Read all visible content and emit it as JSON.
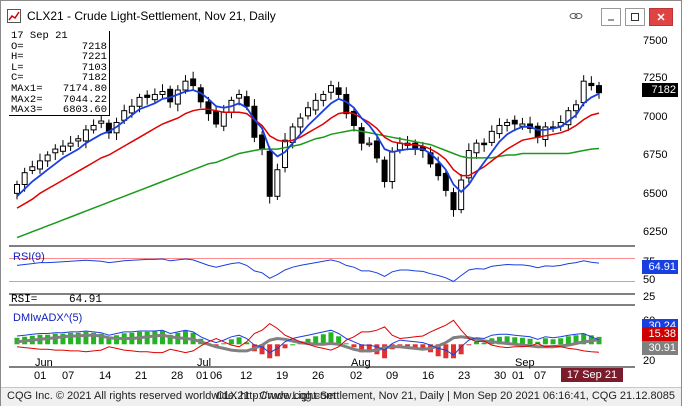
{
  "window": {
    "title": "CLX21 - Crude Light-Settlement, Nov 21, Daily",
    "icons": [
      "chart-app-icon",
      "link-icon",
      "minimize-icon",
      "maximize-icon",
      "close-icon"
    ]
  },
  "ohlc": {
    "date": "17 Sep 21",
    "rows": [
      {
        "k": "O=",
        "v": "7218"
      },
      {
        "k": "H=",
        "v": "7221"
      },
      {
        "k": "L=",
        "v": "7103"
      },
      {
        "k": "C=",
        "v": "7182"
      },
      {
        "k": "MAx1=",
        "v": "7174.80"
      },
      {
        "k": "MAx2=",
        "v": "7044.22"
      },
      {
        "k": "MAx3=",
        "v": "6803.60"
      }
    ]
  },
  "price_axis": {
    "ticks": [
      "7500",
      "7250",
      "7000",
      "6750",
      "6500",
      "6250"
    ],
    "last_price": "7182",
    "colors": {
      "last_price_bg": "#000000"
    }
  },
  "rsi": {
    "label": "RSI(9)",
    "readout_label": "RSI=",
    "readout_value": "64.91",
    "ticks": [
      "75",
      "50",
      "25"
    ],
    "tag": "64.91",
    "colors": {
      "tag_bg": "#1a3fe0",
      "line": "#1a3fe0"
    }
  },
  "dmi": {
    "label": "DMIwADX^(5)",
    "ticks": [
      "60",
      "40",
      "20"
    ],
    "tags": [
      {
        "value": "30.24",
        "color": "#1a3fe0"
      },
      {
        "value": "15.38",
        "color": "#d00000"
      },
      {
        "value": "30.91",
        "color": "#808080"
      }
    ]
  },
  "x_axis": {
    "months": [
      "Jun",
      "Jul",
      "Aug",
      "Sep"
    ],
    "days": [
      "01",
      "07",
      "14",
      "21",
      "28",
      "01",
      "06",
      "12",
      "19",
      "26",
      "02",
      "09",
      "16",
      "23",
      "30",
      "01",
      "07"
    ],
    "cursor_date": "17 Sep 21"
  },
  "status": {
    "left": "CQG Inc. © 2021 All rights reserved worldwide. http://www.cqg.com",
    "right": "CLX21 - Crude Light-Settlement, Nov 21, Daily | Mon Sep 20 2021 06:16:41, CQG 21.12.8085"
  },
  "chart_data": [
    {
      "type": "candlestick",
      "title": "CLX21 - Crude Light-Settlement, Nov 21, Daily",
      "ylim": [
        6150,
        7600
      ],
      "x": [
        "Jun 01",
        "Jun 02",
        "Jun 03",
        "Jun 04",
        "Jun 07",
        "Jun 08",
        "Jun 09",
        "Jun 10",
        "Jun 11",
        "Jun 14",
        "Jun 15",
        "Jun 16",
        "Jun 17",
        "Jun 18",
        "Jun 21",
        "Jun 22",
        "Jun 23",
        "Jun 24",
        "Jun 25",
        "Jun 28",
        "Jun 29",
        "Jun 30",
        "Jul 01",
        "Jul 02",
        "Jul 06",
        "Jul 07",
        "Jul 08",
        "Jul 09",
        "Jul 12",
        "Jul 13",
        "Jul 14",
        "Jul 15",
        "Jul 16",
        "Jul 19",
        "Jul 20",
        "Jul 21",
        "Jul 22",
        "Jul 23",
        "Jul 26",
        "Jul 27",
        "Jul 28",
        "Jul 29",
        "Jul 30",
        "Aug 02",
        "Aug 03",
        "Aug 04",
        "Aug 05",
        "Aug 06",
        "Aug 09",
        "Aug 10",
        "Aug 11",
        "Aug 12",
        "Aug 13",
        "Aug 16",
        "Aug 17",
        "Aug 18",
        "Aug 19",
        "Aug 20",
        "Aug 23",
        "Aug 24",
        "Aug 25",
        "Aug 26",
        "Aug 27",
        "Aug 30",
        "Aug 31",
        "Sep 01",
        "Sep 02",
        "Sep 03",
        "Sep 07",
        "Sep 08",
        "Sep 09",
        "Sep 10",
        "Sep 13",
        "Sep 14",
        "Sep 15",
        "Sep 16",
        "Sep 17"
      ],
      "close": [
        6560,
        6640,
        6680,
        6720,
        6760,
        6800,
        6820,
        6840,
        6870,
        6930,
        6960,
        6990,
        6910,
        6980,
        7060,
        7090,
        7150,
        7150,
        7170,
        7190,
        7120,
        7200,
        7260,
        7230,
        7120,
        7040,
        6970,
        7050,
        7130,
        7170,
        7090,
        6880,
        6800,
        6480,
        6660,
        6860,
        6950,
        7010,
        7080,
        7130,
        7170,
        7230,
        7170,
        7040,
        6960,
        6840,
        6840,
        6740,
        6580,
        6780,
        6840,
        6840,
        6800,
        6790,
        6700,
        6620,
        6520,
        6390,
        6590,
        6790,
        6840,
        6830,
        6920,
        6960,
        6980,
        6970,
        6970,
        6940,
        6880,
        6950,
        6940,
        6980,
        7060,
        7100,
        7260,
        7230,
        7182
      ],
      "ma_fast": [
        6480,
        6530,
        6580,
        6620,
        6660,
        6700,
        6740,
        6770,
        6800,
        6840,
        6870,
        6900,
        6920,
        6950,
        6990,
        7030,
        7070,
        7090,
        7110,
        7140,
        7150,
        7170,
        7190,
        7200,
        7180,
        7140,
        7090,
        7080,
        7090,
        7110,
        7080,
        7000,
        6940,
        6800,
        6750,
        6780,
        6840,
        6900,
        6960,
        7010,
        7060,
        7110,
        7140,
        7120,
        7080,
        7010,
        6960,
        6890,
        6800,
        6780,
        6790,
        6800,
        6800,
        6800,
        6770,
        6720,
        6660,
        6560,
        6510,
        6560,
        6640,
        6710,
        6780,
        6850,
        6900,
        6930,
        6950,
        6950,
        6930,
        6930,
        6940,
        6950,
        6990,
        7030,
        7110,
        7150,
        7175
      ],
      "ma_mid": [
        6400,
        6430,
        6460,
        6500,
        6530,
        6560,
        6590,
        6620,
        6650,
        6680,
        6710,
        6740,
        6760,
        6790,
        6820,
        6850,
        6880,
        6910,
        6940,
        6970,
        6990,
        7010,
        7040,
        7060,
        7070,
        7070,
        7060,
        7050,
        7050,
        7050,
        7040,
        7000,
        6960,
        6890,
        6860,
        6850,
        6860,
        6880,
        6910,
        6940,
        6970,
        7010,
        7040,
        7050,
        7040,
        7010,
        6980,
        6940,
        6880,
        6850,
        6840,
        6830,
        6830,
        6820,
        6800,
        6770,
        6730,
        6660,
        6620,
        6620,
        6650,
        6680,
        6720,
        6760,
        6800,
        6830,
        6860,
        6870,
        6880,
        6890,
        6900,
        6910,
        6930,
        6960,
        7000,
        7030,
        7044
      ],
      "ma_slow": [
        6200,
        6220,
        6240,
        6260,
        6280,
        6300,
        6320,
        6340,
        6360,
        6380,
        6400,
        6420,
        6440,
        6460,
        6480,
        6500,
        6520,
        6540,
        6560,
        6580,
        6600,
        6620,
        6640,
        6660,
        6680,
        6700,
        6710,
        6730,
        6750,
        6770,
        6780,
        6790,
        6800,
        6800,
        6800,
        6810,
        6820,
        6830,
        6850,
        6870,
        6880,
        6900,
        6910,
        6920,
        6930,
        6920,
        6910,
        6900,
        6890,
        6880,
        6870,
        6860,
        6850,
        6840,
        6830,
        6810,
        6790,
        6770,
        6750,
        6740,
        6740,
        6740,
        6740,
        6750,
        6760,
        6760,
        6770,
        6770,
        6770,
        6770,
        6770,
        6770,
        6770,
        6780,
        6790,
        6800,
        6804
      ]
    },
    {
      "type": "line",
      "title": "RSI(9)",
      "ylim": [
        0,
        100
      ],
      "series": [
        {
          "name": "RSI(9)",
          "values": [
            60,
            62,
            64,
            66,
            66,
            67,
            68,
            69,
            70,
            71,
            70,
            69,
            66,
            68,
            70,
            71,
            72,
            73,
            73,
            74,
            70,
            72,
            74,
            72,
            66,
            60,
            56,
            60,
            64,
            66,
            60,
            48,
            44,
            32,
            40,
            50,
            56,
            60,
            63,
            66,
            69,
            72,
            68,
            60,
            56,
            48,
            48,
            44,
            36,
            46,
            50,
            50,
            48,
            47,
            42,
            38,
            33,
            25,
            38,
            50,
            53,
            52,
            58,
            60,
            62,
            61,
            61,
            59,
            55,
            59,
            58,
            60,
            64,
            66,
            70,
            67,
            64.91
          ]
        }
      ]
    },
    {
      "type": "line",
      "title": "DMIwADX^(5)",
      "ylim": [
        0,
        70
      ],
      "series": [
        {
          "name": "+DI",
          "values": [
            35,
            36,
            37,
            38,
            38,
            39,
            39,
            40,
            40,
            41,
            40,
            39,
            36,
            38,
            40,
            40,
            41,
            41,
            41,
            42,
            38,
            40,
            42,
            40,
            34,
            30,
            27,
            30,
            34,
            36,
            32,
            24,
            22,
            15,
            20,
            28,
            32,
            34,
            36,
            38,
            40,
            42,
            38,
            32,
            28,
            24,
            24,
            22,
            18,
            26,
            30,
            29,
            28,
            27,
            24,
            20,
            18,
            12,
            22,
            30,
            33,
            32,
            36,
            37,
            37,
            36,
            35,
            34,
            31,
            34,
            33,
            34,
            36,
            37,
            38,
            34,
            30.24
          ]
        },
        {
          "name": "-DI",
          "values": [
            22,
            21,
            20,
            19,
            19,
            18,
            18,
            17,
            17,
            16,
            17,
            18,
            22,
            20,
            18,
            17,
            16,
            16,
            15,
            15,
            19,
            17,
            15,
            17,
            23,
            28,
            32,
            28,
            24,
            22,
            28,
            38,
            42,
            50,
            44,
            36,
            32,
            28,
            25,
            22,
            20,
            18,
            22,
            30,
            34,
            40,
            40,
            42,
            46,
            36,
            32,
            33,
            34,
            35,
            40,
            44,
            48,
            54,
            42,
            32,
            28,
            29,
            24,
            22,
            21,
            22,
            22,
            23,
            26,
            22,
            23,
            22,
            20,
            19,
            17,
            16,
            15.38
          ]
        },
        {
          "name": "ADX",
          "values": [
            28,
            29,
            30,
            31,
            32,
            33,
            34,
            35,
            35,
            36,
            36,
            35,
            33,
            32,
            32,
            32,
            33,
            34,
            35,
            36,
            34,
            33,
            32,
            31,
            28,
            25,
            22,
            20,
            18,
            17,
            17,
            20,
            24,
            30,
            32,
            31,
            29,
            27,
            26,
            25,
            25,
            26,
            25,
            22,
            19,
            17,
            17,
            18,
            21,
            22,
            22,
            21,
            20,
            19,
            20,
            23,
            27,
            33,
            34,
            33,
            31,
            29,
            28,
            27,
            26,
            25,
            24,
            23,
            22,
            22,
            22,
            23,
            24,
            26,
            28,
            29,
            30.91
          ]
        }
      ]
    }
  ]
}
